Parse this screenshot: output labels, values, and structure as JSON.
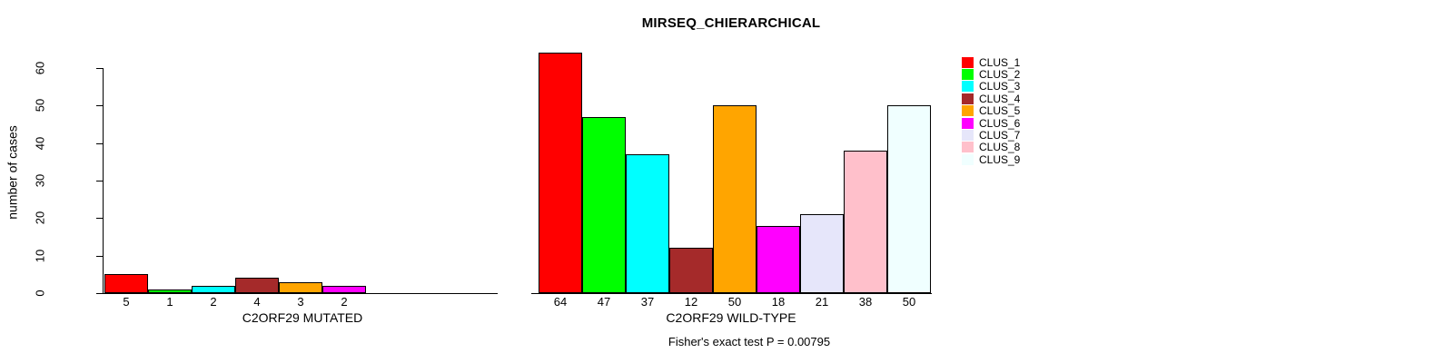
{
  "chart": {
    "title": "MIRSEQ_CHIERARCHICAL",
    "annotation": "Fisher's exact test P = 0.00795"
  },
  "chart_data": {
    "type": "bar",
    "title": "MIRSEQ_CHIERARCHICAL",
    "ylabel": "number of cases",
    "ylim": [
      0,
      60
    ],
    "yticks": [
      0,
      10,
      20,
      30,
      40,
      50,
      60
    ],
    "grid": false,
    "legend_position": "right-outside",
    "clusters": [
      {
        "label": "CLUS_1",
        "color": "#FF0000"
      },
      {
        "label": "CLUS_2",
        "color": "#00FF00"
      },
      {
        "label": "CLUS_3",
        "color": "#00FFFF"
      },
      {
        "label": "CLUS_4",
        "color": "#A52A2A"
      },
      {
        "label": "CLUS_5",
        "color": "#FFA500"
      },
      {
        "label": "CLUS_6",
        "color": "#FF00FF"
      },
      {
        "label": "CLUS_7",
        "color": "#E6E6FA"
      },
      {
        "label": "CLUS_8",
        "color": "#FFC0CB"
      },
      {
        "label": "CLUS_9",
        "color": "#F0FFFF"
      }
    ],
    "panels": [
      {
        "xlabel": "C2ORF29 MUTATED",
        "values": [
          5,
          1,
          2,
          4,
          3,
          2,
          0,
          0,
          0
        ],
        "bar_labels": [
          "5",
          "1",
          "2",
          "4",
          "3",
          "2",
          "",
          "",
          ""
        ]
      },
      {
        "xlabel": "C2ORF29 WILD-TYPE",
        "values": [
          64,
          47,
          37,
          12,
          50,
          18,
          21,
          38,
          50
        ],
        "bar_labels": [
          "64",
          "47",
          "37",
          "12",
          "50",
          "18",
          "21",
          "38",
          "50"
        ]
      }
    ],
    "annotation": "Fisher's exact test P = 0.00795"
  }
}
